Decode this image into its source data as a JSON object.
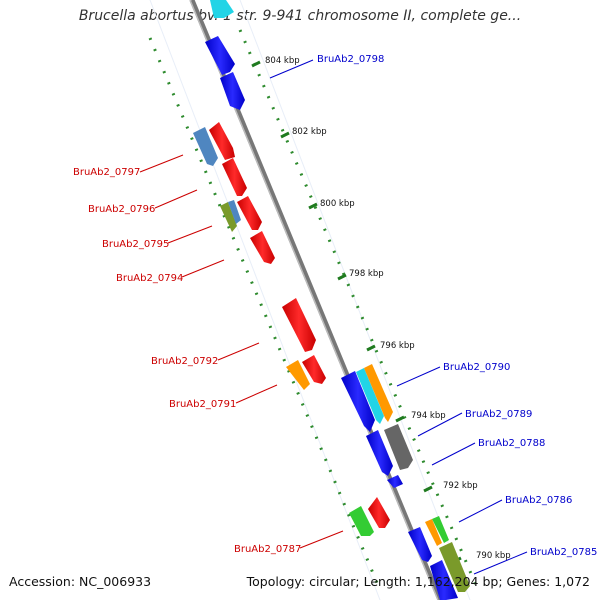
{
  "title": "Brucella abortus bv. 1 str. 9-941 chromosome II, complete ge...",
  "footer": {
    "accession": "Accession: NC_006933",
    "stats": "Topology: circular; Length: 1,162,204 bp; Genes: 1,072"
  },
  "colors": {
    "forward_label": "#0000cc",
    "reverse_label": "#cc0000",
    "backbone": "#888888",
    "tick": "#2e8b2e"
  },
  "scale_ticks": [
    "804 kbp",
    "802 kbp",
    "800 kbp",
    "798 kbp",
    "796 kbp",
    "794 kbp",
    "792 kbp",
    "790 kbp"
  ],
  "genes": {
    "forward": [
      "BruAb2_0798",
      "BruAb2_0790",
      "BruAb2_0789",
      "BruAb2_0788",
      "BruAb2_0786",
      "BruAb2_0785"
    ],
    "reverse": [
      "BruAb2_0797",
      "BruAb2_0796",
      "BruAb2_0795",
      "BruAb2_0794",
      "BruAb2_0792",
      "BruAb2_0791",
      "BruAb2_0787"
    ]
  },
  "feature_colors": {
    "cds_forward": "#1a1af0",
    "cds_reverse": "#ee1c1c",
    "light_blue": "#4f86c0",
    "cyan": "#22d4e6",
    "orange": "#ff9900",
    "gray": "#666666",
    "green": "#33cc33",
    "olive": "#7a9a2a"
  }
}
